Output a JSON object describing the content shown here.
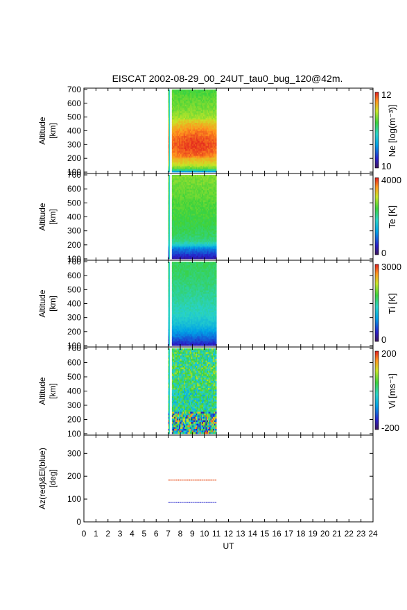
{
  "title": "EISCAT 2002-08-29_00_24UT_tau0_bug_120@42m.",
  "chart_data": {
    "type": "heatmap",
    "xlabel": "UT",
    "xlim": [
      0,
      24
    ],
    "x_ticks": [
      "0",
      "1",
      "2",
      "3",
      "4",
      "5",
      "6",
      "7",
      "8",
      "9",
      "10",
      "11",
      "12",
      "13",
      "14",
      "15",
      "16",
      "17",
      "18",
      "19",
      "20",
      "21",
      "22",
      "23",
      "24"
    ],
    "data_ut_range": [
      7.0,
      11.0
    ],
    "gap_ut": [
      7.15,
      7.3
    ],
    "panels": [
      {
        "id": "ne",
        "ylabel": [
          "Altitude",
          "[km]"
        ],
        "ylim": [
          90,
          710
        ],
        "y_ticks": [
          "100",
          "200",
          "300",
          "400",
          "500",
          "600",
          "700"
        ],
        "colorbar": {
          "label": "Ne [log(m⁻³)]",
          "min": "10",
          "max": "12",
          "range": [
            10,
            12
          ]
        },
        "profile": [
          [
            100,
            10.4
          ],
          [
            115,
            11.0
          ],
          [
            130,
            11.3
          ],
          [
            160,
            11.55
          ],
          [
            220,
            11.72
          ],
          [
            280,
            11.82
          ],
          [
            330,
            11.8
          ],
          [
            380,
            11.72
          ],
          [
            430,
            11.6
          ],
          [
            480,
            11.45
          ],
          [
            540,
            11.35
          ],
          [
            600,
            11.3
          ],
          [
            660,
            11.25
          ],
          [
            700,
            11.2
          ]
        ]
      },
      {
        "id": "te",
        "ylabel": [
          "Altitude",
          "[km]"
        ],
        "ylim": [
          90,
          710
        ],
        "y_ticks": [
          "100",
          "200",
          "300",
          "400",
          "500",
          "600",
          "700"
        ],
        "colorbar": {
          "label": "Te [K]",
          "min": "0",
          "max": "4000",
          "range": [
            0,
            4000
          ]
        },
        "profile": [
          [
            100,
            300
          ],
          [
            120,
            500
          ],
          [
            150,
            800
          ],
          [
            180,
            1100
          ],
          [
            200,
            1700
          ],
          [
            230,
            2100
          ],
          [
            300,
            2300
          ],
          [
            400,
            2400
          ],
          [
            500,
            2500
          ],
          [
            600,
            2600
          ],
          [
            700,
            2700
          ]
        ]
      },
      {
        "id": "ti",
        "ylabel": [
          "Altitude",
          "[km]"
        ],
        "ylim": [
          90,
          710
        ],
        "y_ticks": [
          "100",
          "200",
          "300",
          "400",
          "500",
          "600",
          "700"
        ],
        "colorbar": {
          "label": "Ti [K]",
          "min": "0",
          "max": "3000",
          "range": [
            0,
            3000
          ]
        },
        "profile": [
          [
            100,
            300
          ],
          [
            130,
            500
          ],
          [
            160,
            700
          ],
          [
            200,
            900
          ],
          [
            250,
            1150
          ],
          [
            300,
            1300
          ],
          [
            400,
            1450
          ],
          [
            500,
            1550
          ],
          [
            600,
            1650
          ],
          [
            700,
            1700
          ]
        ]
      },
      {
        "id": "vi",
        "ylabel": [
          "Altitude",
          "[km]"
        ],
        "ylim": [
          90,
          710
        ],
        "y_ticks": [
          "100",
          "200",
          "300",
          "400",
          "500",
          "600",
          "700"
        ],
        "colorbar": {
          "label": "Vi [ms⁻¹]",
          "min": "-200",
          "max": "200",
          "range": [
            -200,
            200
          ]
        },
        "profile": [
          [
            100,
            0
          ],
          [
            700,
            0
          ]
        ]
      }
    ],
    "pointing_panel": {
      "ylabel": [
        "Az(red)&El(blue)",
        "[deg]"
      ],
      "ylim": [
        0,
        380
      ],
      "y_ticks": [
        "0",
        "100",
        "200",
        "300"
      ],
      "series": [
        {
          "name": "Az",
          "color": "#e8501e",
          "ut": [
            7.0,
            11.0
          ],
          "value": 183
        },
        {
          "name": "El",
          "color": "#3a3ad0",
          "ut": [
            7.0,
            11.0
          ],
          "value": 85
        }
      ]
    }
  }
}
